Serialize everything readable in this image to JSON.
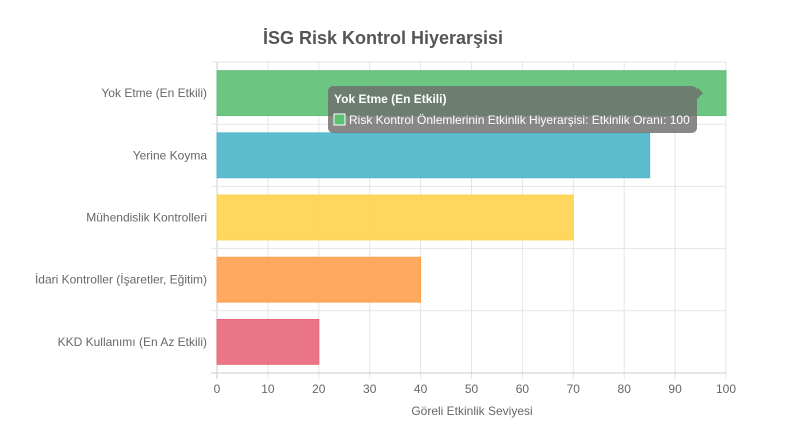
{
  "chart_data": {
    "type": "bar",
    "orientation": "horizontal",
    "title": "İSG Risk Kontrol Hiyerarşisi",
    "xlabel": "Göreli Etkinlik Seviyesi",
    "ylabel": "",
    "xlim": [
      0,
      100
    ],
    "x_ticks": [
      "0",
      "10",
      "20",
      "30",
      "40",
      "50",
      "60",
      "70",
      "80",
      "90",
      "100"
    ],
    "grid": true,
    "categories": [
      "Yok Etme (En Etkili)",
      "Yerine Koyma",
      "Mühendislik Kontrolleri",
      "İdari Kontroller (İşaretler, Eğitim)",
      "KKD Kullanımı (En Az Etkili)"
    ],
    "series": [
      {
        "name": "Risk Kontrol Önlemlerinin Etkinlik Hiyerarşisi: Etkinlik Oranı",
        "values": [
          100,
          85,
          70,
          40,
          20
        ],
        "colors": [
          "#5cbf72",
          "#4bb6c9",
          "#ffd24d",
          "#ffa04f",
          "#e8667a"
        ]
      }
    ],
    "tooltip": {
      "title": "Yok Etme (En Etkili)",
      "body": "Risk Kontrol Önlemlerinin Etkinlik Hiyerarşisi: Etkinlik Oranı: 100"
    }
  }
}
